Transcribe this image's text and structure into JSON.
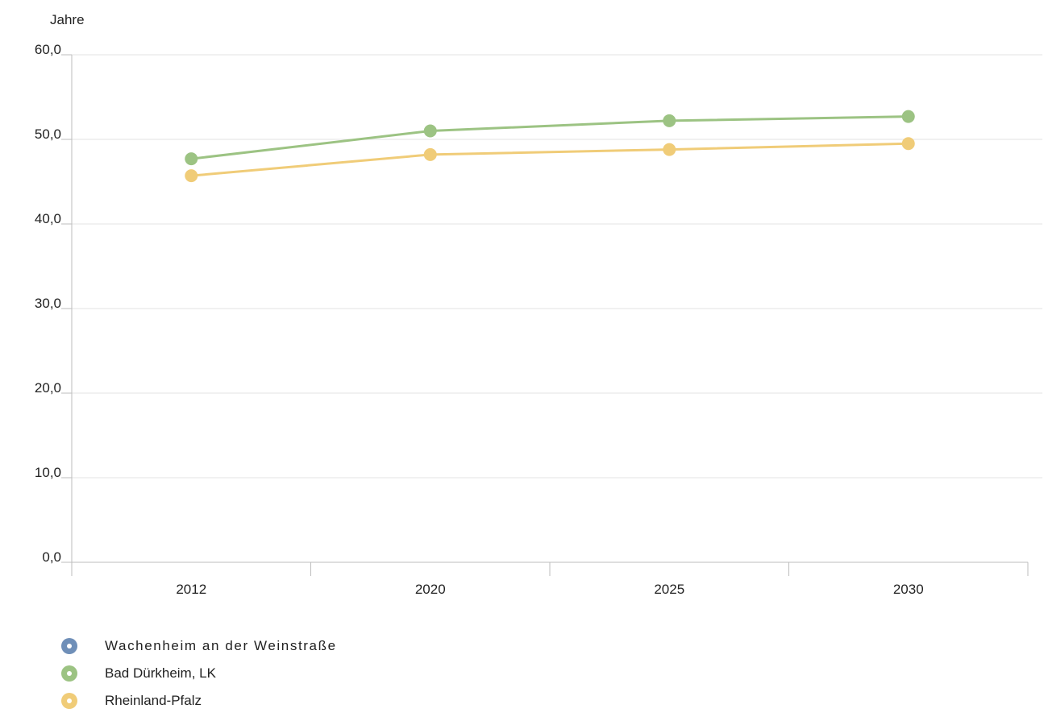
{
  "chart_data": {
    "type": "line",
    "ylabel": "Jahre",
    "ylim": [
      0,
      60
    ],
    "yticks": [
      "0,0",
      "10,0",
      "20,0",
      "30,0",
      "40,0",
      "50,0",
      "60,0"
    ],
    "categories": [
      "2012",
      "2020",
      "2025",
      "2030"
    ],
    "grid": true,
    "legend_position": "bottom-left",
    "series": [
      {
        "name": "Wachenheim an der Weinstraße",
        "color": "#6f8fb8",
        "values": [
          null,
          null,
          null,
          null
        ]
      },
      {
        "name": "Bad Dürkheim, LK",
        "color": "#9cc383",
        "values": [
          47.7,
          51.0,
          52.2,
          52.7
        ]
      },
      {
        "name": "Rheinland-Pfalz",
        "color": "#f0cc78",
        "values": [
          45.7,
          48.2,
          48.8,
          49.5
        ]
      }
    ]
  }
}
